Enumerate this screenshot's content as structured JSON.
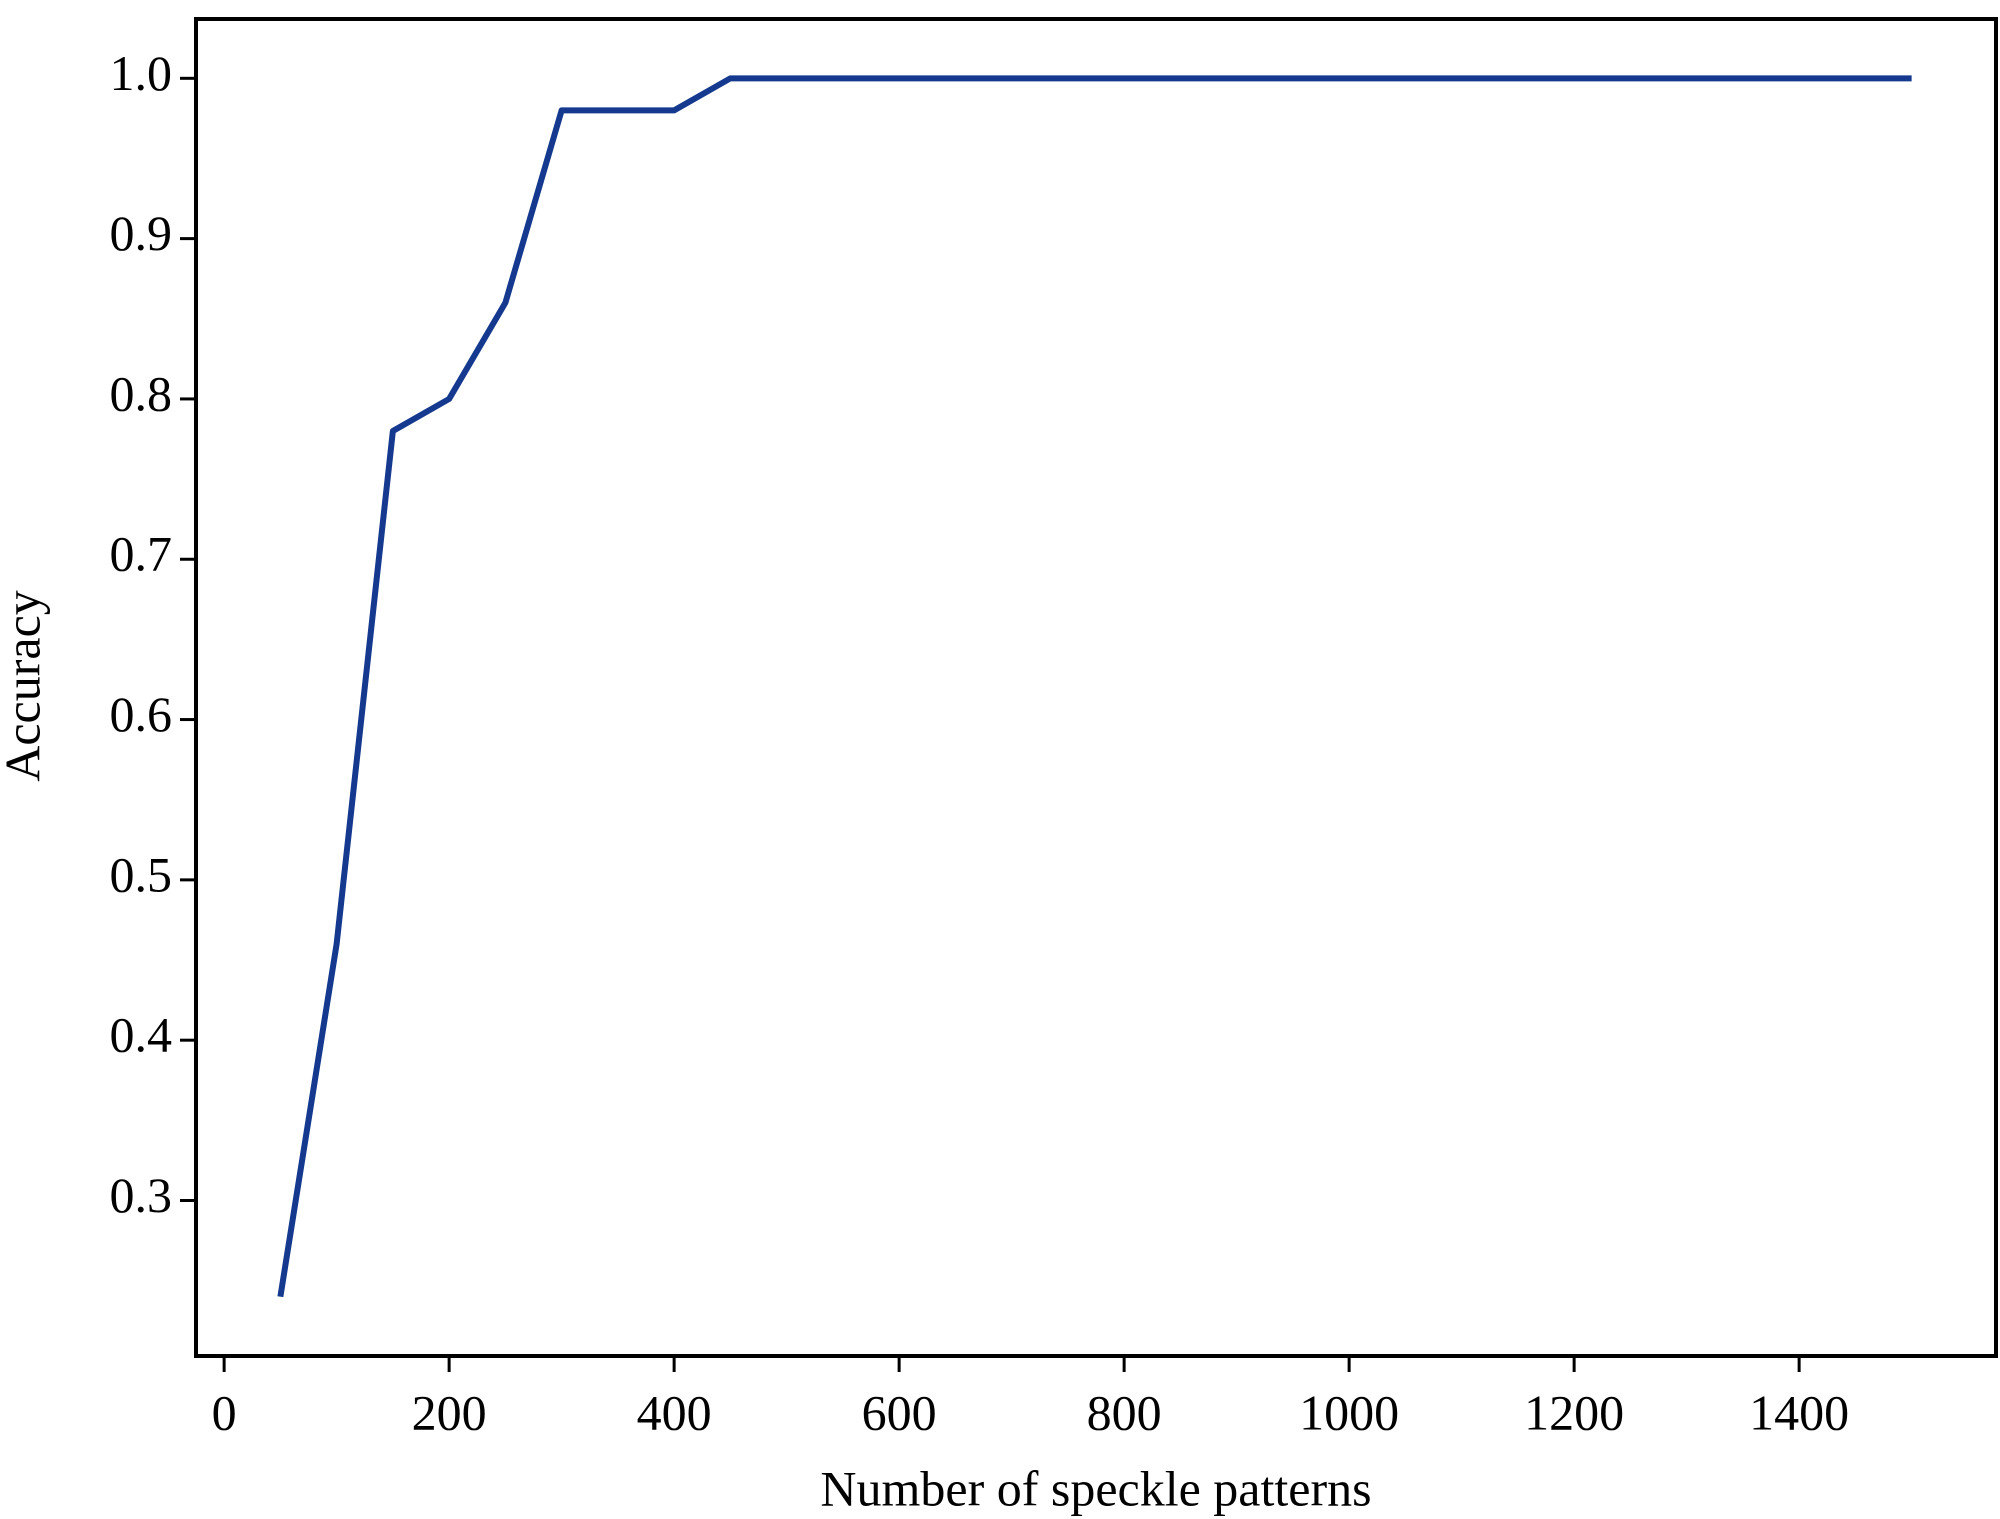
{
  "chart_data": {
    "type": "line",
    "x_label": "Number of speckle patterns",
    "y_label": "Accuracy",
    "x": [
      50,
      100,
      150,
      200,
      250,
      300,
      350,
      400,
      450,
      500,
      550,
      600,
      650,
      700,
      750,
      800,
      850,
      900,
      950,
      1000,
      1050,
      1100,
      1150,
      1200,
      1250,
      1300,
      1350,
      1400,
      1450,
      1500
    ],
    "series": [
      {
        "color": "#14398f",
        "values": [
          0.24,
          0.46,
          0.78,
          0.8,
          0.86,
          0.98,
          0.98,
          0.98,
          1.0,
          1.0,
          1.0,
          1.0,
          1.0,
          1.0,
          1.0,
          1.0,
          1.0,
          1.0,
          1.0,
          1.0,
          1.0,
          1.0,
          1.0,
          1.0,
          1.0,
          1.0,
          1.0,
          1.0,
          1.0,
          1.0
        ]
      }
    ],
    "xlim": [
      -25,
      1575
    ],
    "ylim": [
      0.203,
      1.037
    ],
    "xticks": [
      0,
      200,
      400,
      600,
      800,
      1000,
      1200,
      1400
    ],
    "yticks": [
      0.3,
      0.4,
      0.5,
      0.6,
      0.7,
      0.8,
      0.9,
      {
        "value": 1.0,
        "label": "1.0"
      }
    ],
    "grid": false
  }
}
